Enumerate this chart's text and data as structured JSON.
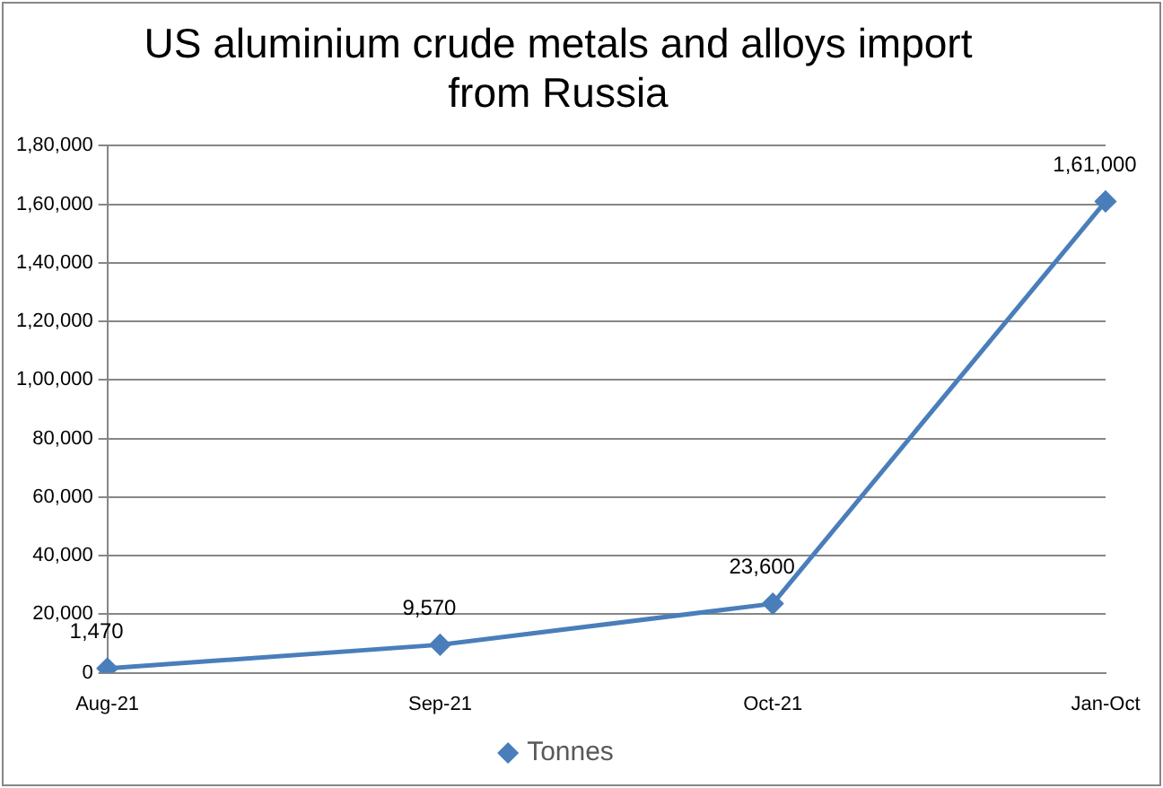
{
  "chart_data": {
    "type": "line",
    "title": "US aluminium crude metals and alloys import from Russia",
    "categories": [
      "Aug-21",
      "Sep-21",
      "Oct-21",
      "Jan-Oct"
    ],
    "series": [
      {
        "name": "Tonnes",
        "color": "#4a7ebb",
        "values": [
          1470,
          9570,
          23600,
          161000
        ],
        "value_labels": [
          "1,470",
          "9,570",
          "23,600",
          "1,61,000"
        ]
      }
    ],
    "ylim": [
      0,
      180000
    ],
    "yticks": [
      {
        "value": 0,
        "label": "0"
      },
      {
        "value": 20000,
        "label": "20,000"
      },
      {
        "value": 40000,
        "label": "40,000"
      },
      {
        "value": 60000,
        "label": "60,000"
      },
      {
        "value": 80000,
        "label": "80,000"
      },
      {
        "value": 100000,
        "label": "1,00,000"
      },
      {
        "value": 120000,
        "label": "1,20,000"
      },
      {
        "value": 140000,
        "label": "1,40,000"
      },
      {
        "value": 160000,
        "label": "1,60,000"
      },
      {
        "value": 180000,
        "label": "1,80,000"
      }
    ],
    "grid": "y",
    "legend": "bottom",
    "marker": "diamond",
    "line_style": "solid"
  }
}
